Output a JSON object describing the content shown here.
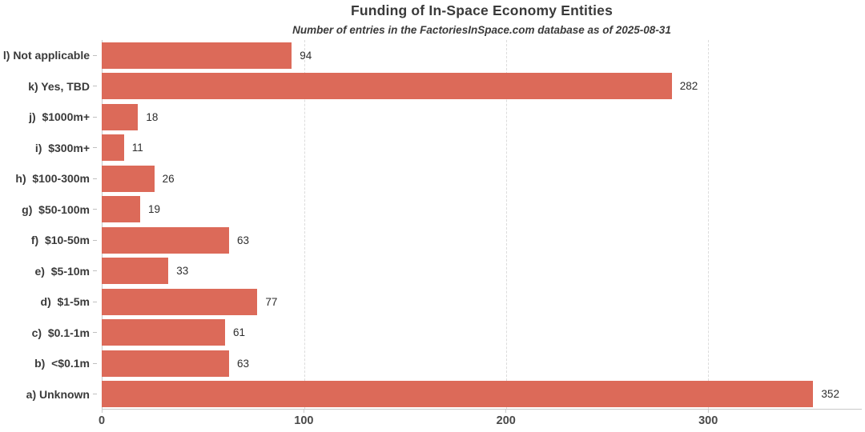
{
  "header": {
    "title": "Funding of In-Space Economy Entities",
    "subtitle": "Number of entries in the FactoriesInSpace.com database as of 2025-08-31"
  },
  "colors": {
    "bar": "#dc6a59",
    "axis_line": "#c9c9c9",
    "gridline": "#dcdcdc",
    "title_text": "#3a3a3a",
    "category_text": "#3a3a3a",
    "value_text": "#2e2e2e",
    "tick_text": "#4a4a4a"
  },
  "chart_data": {
    "type": "bar",
    "orientation": "horizontal",
    "title": "Funding of In-Space Economy Entities",
    "subtitle": "Number of entries in the FactoriesInSpace.com database as of 2025-08-31",
    "categories": [
      "l) Not applicable",
      "k) Yes, TBD",
      "j)  $1000m+",
      "i)  $300m+",
      "h)  $100-300m",
      "g)  $50-100m",
      "f)  $10-50m",
      "e)  $5-10m",
      "d)  $1-5m",
      "c)  $0.1-1m",
      "b)  <$0.1m",
      "a) Unknown"
    ],
    "values": [
      94,
      282,
      18,
      11,
      26,
      19,
      63,
      33,
      77,
      61,
      63,
      352
    ],
    "bar_value_labels": [
      "94",
      "282",
      "18",
      "11",
      "26",
      "19",
      "63",
      "33",
      "77",
      "61",
      "63",
      "352"
    ],
    "xlabel": "",
    "ylabel": "",
    "xticks": [
      0,
      100,
      200,
      300
    ],
    "xlim": [
      0,
      376
    ],
    "grid": "vertical dashed at xticks, behind bars",
    "legend": "none"
  }
}
